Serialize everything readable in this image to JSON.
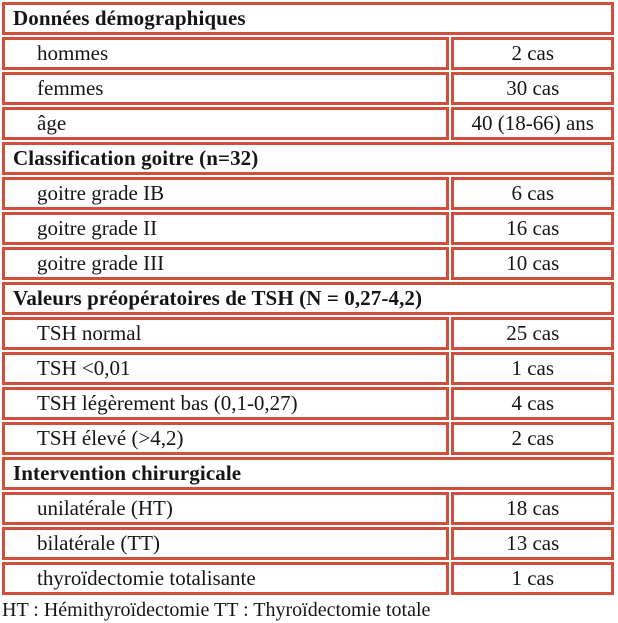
{
  "table": {
    "border_color": "#cf4f3c",
    "text_color": "#151515",
    "background": "#ffffff",
    "unit_suffix": "cas",
    "sections": [
      {
        "header": "Données démographiques",
        "rows": [
          {
            "label": "hommes",
            "value": "2 cas"
          },
          {
            "label": "femmes",
            "value": "30 cas"
          },
          {
            "label": "âge",
            "value": "40 (18-66) ans"
          }
        ]
      },
      {
        "header": "Classification goitre (n=32)",
        "rows": [
          {
            "label": "goitre grade IB",
            "value": "6 cas"
          },
          {
            "label": "goitre grade II",
            "value": "16 cas"
          },
          {
            "label": "goitre grade III",
            "value": "10 cas"
          }
        ]
      },
      {
        "header": "Valeurs préopératoires de TSH (N = 0,27-4,2)",
        "rows": [
          {
            "label": "TSH normal",
            "value": "25 cas"
          },
          {
            "label": "TSH <0,01",
            "value": "1 cas"
          },
          {
            "label": "TSH légèrement bas (0,1-0,27)",
            "value": "4 cas"
          },
          {
            "label": "TSH élevé (>4,2)",
            "value": "2 cas"
          }
        ]
      },
      {
        "header": "Intervention chirurgicale",
        "rows": [
          {
            "label": "unilatérale (HT)",
            "value": "18 cas"
          },
          {
            "label": "bilatérale (TT)",
            "value": "13 cas"
          },
          {
            "label": "thyroïdectomie totalisante",
            "value": "1 cas"
          }
        ]
      }
    ],
    "footnote": "HT : Hémithyroïdectomie TT : Thyroïdectomie totale"
  }
}
